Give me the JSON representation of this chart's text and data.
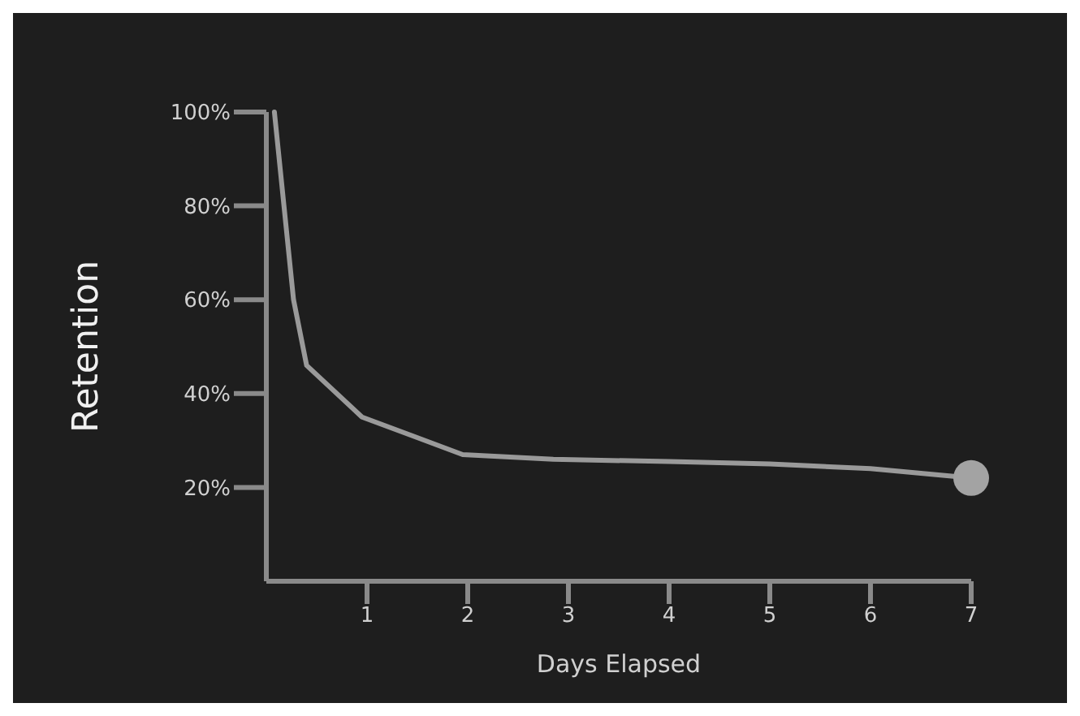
{
  "chart_data": {
    "type": "line",
    "xlabel": "Days Elapsed",
    "ylabel": "Retention",
    "x": [
      0.08,
      0.27,
      0.4,
      0.95,
      1.95,
      2.85,
      4,
      5,
      6,
      7
    ],
    "series": [
      {
        "color": "#9a9a9a",
        "values": [
          100,
          60,
          46,
          35,
          27,
          26,
          25.5,
          25,
          24,
          22
        ],
        "marker": "none"
      },
      {
        "type": "scatter",
        "color": "#a3a3a3",
        "x": [
          7
        ],
        "values": [
          22
        ],
        "marker": "circle"
      }
    ],
    "xlim": [
      0,
      7
    ],
    "xticks": [
      1,
      2,
      3,
      4,
      5,
      6,
      7
    ],
    "ylim": [
      0,
      100
    ],
    "yticks": [
      {
        "value": 20,
        "label": "20%"
      },
      {
        "value": 40,
        "label": "40%"
      },
      {
        "value": 60,
        "label": "60%"
      },
      {
        "value": 80,
        "label": "80%"
      },
      {
        "value": 100,
        "label": "100%"
      }
    ],
    "line_style": "solid"
  }
}
